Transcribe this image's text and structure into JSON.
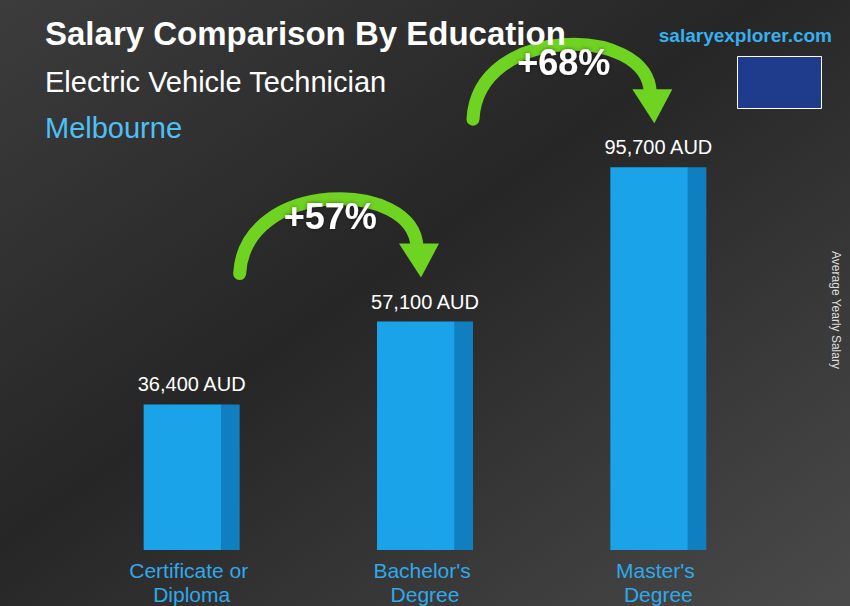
{
  "chart_data": {
    "type": "bar",
    "title": "Salary Comparison By Education",
    "subtitle": "Electric Vehicle Technician",
    "location": "Melbourne",
    "source": "salaryexplorer.com",
    "y_label": "Average Yearly Salary",
    "categories": [
      "Certificate or Diploma",
      "Bachelor's Degree",
      "Master's Degree"
    ],
    "values": [
      36400,
      57100,
      95700
    ],
    "value_labels": [
      "36,400 AUD",
      "57,100 AUD",
      "95,700 AUD"
    ],
    "data_labels": true,
    "color": "#1aa3e8",
    "ylim": [
      0,
      110000
    ],
    "yticks": [
      0,
      110000
    ],
    "grid": false,
    "tick_labels": "x",
    "annotations": [
      {
        "text": "+57%",
        "from": "Certificate or Diploma",
        "to": "Bachelor's Degree"
      },
      {
        "text": "+68%",
        "from": "Bachelor's Degree",
        "to": "Master's Degree"
      }
    ]
  }
}
